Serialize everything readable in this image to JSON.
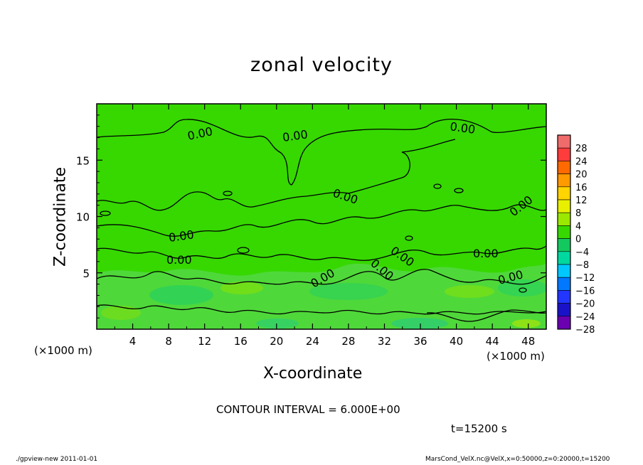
{
  "chart_data": {
    "type": "heatmap",
    "title": "zonal velocity",
    "xlabel": "X-coordinate",
    "ylabel": "Z-coordinate",
    "x_unit": "(×1000 m)",
    "y_unit": "(×1000 m)",
    "xlim": [
      0,
      50
    ],
    "ylim": [
      0,
      20
    ],
    "x_ticks": [
      4,
      8,
      12,
      16,
      20,
      24,
      28,
      32,
      36,
      40,
      44,
      48
    ],
    "y_ticks": [
      5,
      10,
      15
    ],
    "contour_interval_text": "CONTOUR INTERVAL = 6.000E+00",
    "contour_labels": [
      "0.00"
    ],
    "colorbar": {
      "levels": [
        28,
        24,
        20,
        16,
        12,
        8,
        4,
        0,
        -4,
        -8,
        -12,
        -16,
        -20,
        -24,
        -28
      ],
      "colors": [
        "#f06b6b",
        "#ff3c3c",
        "#ff6a00",
        "#ff9a00",
        "#ffd400",
        "#e8ef00",
        "#9be800",
        "#36d800",
        "#14c860",
        "#00d8a0",
        "#00c8ff",
        "#0078ff",
        "#2236ff",
        "#1a12c8",
        "#6a00b0"
      ]
    },
    "field_description_values": {
      "dominant_range": [
        -4,
        4
      ]
    },
    "time_label": "t=15200 s"
  },
  "footer": {
    "left": "./gpview-new   2011-01-01",
    "right": "MarsCond_VelX.nc@VelX,x=0:50000,z=0:20000,t=15200"
  }
}
